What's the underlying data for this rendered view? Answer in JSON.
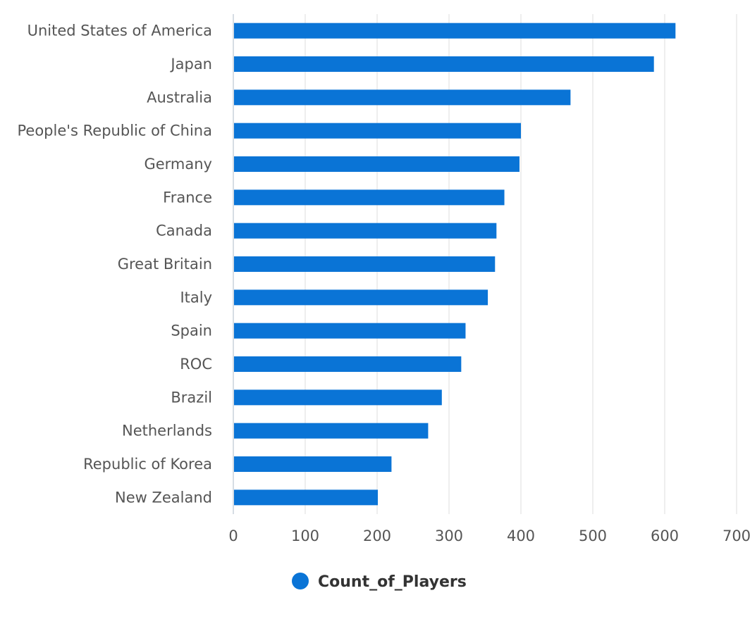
{
  "chart_data": {
    "type": "bar",
    "orientation": "horizontal",
    "categories": [
      "United States of America",
      "Japan",
      "Australia",
      "People's Republic of China",
      "Germany",
      "France",
      "Canada",
      "Great Britain",
      "Italy",
      "Spain",
      "ROC",
      "Brazil",
      "Netherlands",
      "Republic of Korea",
      "New Zealand"
    ],
    "series": [
      {
        "name": "Count_of_Players",
        "color": "#0a74d6",
        "values": [
          615,
          585,
          469,
          400,
          398,
          377,
          366,
          364,
          354,
          323,
          317,
          290,
          271,
          220,
          201
        ]
      }
    ],
    "xlim": [
      0,
      700
    ],
    "xticks": [
      "0",
      "100",
      "200",
      "300",
      "400",
      "500",
      "600",
      "700"
    ],
    "grid": true,
    "legend": "bottom-center",
    "gridColor": "#dddddd",
    "labelColor": "#555555"
  }
}
